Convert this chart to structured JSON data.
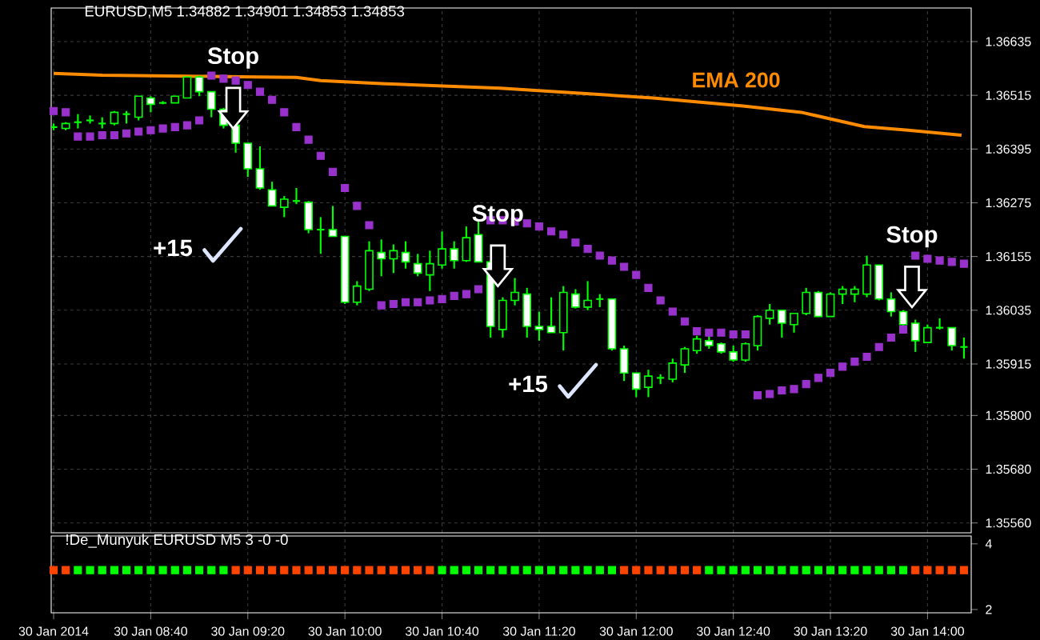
{
  "chart_data": [
    {
      "type": "candlestick",
      "title": "EURUSD,M5 1.34882 1.34901 1.34853 1.34853",
      "color": "#00ff00",
      "x": [
        "2014-01-30T08:00",
        "2014-01-30T08:05",
        "2014-01-30T08:10",
        "2014-01-30T08:15",
        "2014-01-30T08:20",
        "2014-01-30T08:25",
        "2014-01-30T08:30",
        "2014-01-30T08:35",
        "2014-01-30T08:40",
        "2014-01-30T08:45",
        "2014-01-30T08:50",
        "2014-01-30T08:55",
        "2014-01-30T09:00",
        "2014-01-30T09:05",
        "2014-01-30T09:10",
        "2014-01-30T09:15",
        "2014-01-30T09:20",
        "2014-01-30T09:25",
        "2014-01-30T09:30",
        "2014-01-30T09:35",
        "2014-01-30T09:40",
        "2014-01-30T09:45",
        "2014-01-30T09:50",
        "2014-01-30T09:55",
        "2014-01-30T10:00",
        "2014-01-30T10:05",
        "2014-01-30T10:10",
        "2014-01-30T10:15",
        "2014-01-30T10:20",
        "2014-01-30T10:25",
        "2014-01-30T10:30",
        "2014-01-30T10:35",
        "2014-01-30T10:40",
        "2014-01-30T10:45",
        "2014-01-30T10:50",
        "2014-01-30T10:55",
        "2014-01-30T11:00",
        "2014-01-30T11:05",
        "2014-01-30T11:10",
        "2014-01-30T11:15",
        "2014-01-30T11:20",
        "2014-01-30T11:25",
        "2014-01-30T11:30",
        "2014-01-30T11:35",
        "2014-01-30T11:40",
        "2014-01-30T11:45",
        "2014-01-30T11:50",
        "2014-01-30T11:55",
        "2014-01-30T12:00",
        "2014-01-30T12:05",
        "2014-01-30T12:10",
        "2014-01-30T12:15",
        "2014-01-30T12:20",
        "2014-01-30T12:25",
        "2014-01-30T12:30",
        "2014-01-30T12:35",
        "2014-01-30T12:40",
        "2014-01-30T12:45",
        "2014-01-30T12:50",
        "2014-01-30T12:55",
        "2014-01-30T13:00",
        "2014-01-30T13:05",
        "2014-01-30T13:10",
        "2014-01-30T13:15",
        "2014-01-30T13:20",
        "2014-01-30T13:25",
        "2014-01-30T13:30",
        "2014-01-30T13:35",
        "2014-01-30T13:40",
        "2014-01-30T13:45",
        "2014-01-30T13:50",
        "2014-01-30T13:55",
        "2014-01-30T14:00",
        "2014-01-30T14:05",
        "2014-01-30T14:10",
        "2014-01-30T14:15"
      ],
      "ohlc": [
        [
          1.36444,
          1.36452,
          1.36437,
          1.36444
        ],
        [
          1.36441,
          1.36455,
          1.36437,
          1.36452
        ],
        [
          1.36455,
          1.36473,
          1.36441,
          1.36455
        ],
        [
          1.36459,
          1.3647,
          1.36452,
          1.36459
        ],
        [
          1.36452,
          1.36466,
          1.36441,
          1.36452
        ],
        [
          1.36452,
          1.3648,
          1.36448,
          1.36477
        ],
        [
          1.36473,
          1.3648,
          1.36452,
          1.36473
        ],
        [
          1.36466,
          1.36513,
          1.36459,
          1.36513
        ],
        [
          1.36509,
          1.36513,
          1.36477,
          1.36495
        ],
        [
          1.36498,
          1.36502,
          1.36495,
          1.36498
        ],
        [
          1.36498,
          1.36513,
          1.36498,
          1.36513
        ],
        [
          1.36509,
          1.36556,
          1.36509,
          1.36556
        ],
        [
          1.36556,
          1.36559,
          1.36513,
          1.36523
        ],
        [
          1.36523,
          1.36523,
          1.36466,
          1.36484
        ],
        [
          1.36484,
          1.36487,
          1.36441,
          1.36448
        ],
        [
          1.36448,
          1.36448,
          1.36387,
          1.36408
        ],
        [
          1.36408,
          1.36408,
          1.36333,
          1.36351
        ],
        [
          1.36351,
          1.36401,
          1.36304,
          1.36308
        ],
        [
          1.36304,
          1.36322,
          1.36268,
          1.36268
        ],
        [
          1.36265,
          1.3629,
          1.36243,
          1.36283
        ],
        [
          1.36279,
          1.36308,
          1.36272,
          1.36279
        ],
        [
          1.36276,
          1.36279,
          1.36207,
          1.36215
        ],
        [
          1.36215,
          1.36243,
          1.36161,
          1.36215
        ],
        [
          1.36215,
          1.36268,
          1.362,
          1.362
        ],
        [
          1.362,
          1.362,
          1.36049,
          1.36053
        ],
        [
          1.36053,
          1.361,
          1.36046,
          1.36089
        ],
        [
          1.36082,
          1.36189,
          1.36078,
          1.36168
        ],
        [
          1.36164,
          1.36193,
          1.36111,
          1.3615
        ],
        [
          1.3615,
          1.36182,
          1.36118,
          1.36168
        ],
        [
          1.36164,
          1.36189,
          1.36128,
          1.36143
        ],
        [
          1.36139,
          1.36161,
          1.36111,
          1.36118
        ],
        [
          1.36114,
          1.36168,
          1.36078,
          1.36139
        ],
        [
          1.36136,
          1.36211,
          1.36128,
          1.36172
        ],
        [
          1.36172,
          1.36189,
          1.36128,
          1.36146
        ],
        [
          1.36146,
          1.36222,
          1.36143,
          1.36197
        ],
        [
          1.36204,
          1.36236,
          1.36143,
          1.36143
        ],
        [
          1.36143,
          1.36146,
          1.35974,
          1.35999
        ],
        [
          1.35992,
          1.36064,
          1.35974,
          1.36057
        ],
        [
          1.36057,
          1.36107,
          1.36046,
          1.36075
        ],
        [
          1.36071,
          1.36085,
          1.35974,
          1.35999
        ],
        [
          1.35999,
          1.36032,
          1.35967,
          1.35992
        ],
        [
          1.35999,
          1.36064,
          1.35985,
          1.35985
        ],
        [
          1.35985,
          1.36089,
          1.35945,
          1.36075
        ],
        [
          1.36071,
          1.36082,
          1.36039,
          1.36042
        ],
        [
          1.36042,
          1.361,
          1.36035,
          1.36057
        ],
        [
          1.3606,
          1.36071,
          1.36042,
          1.3606
        ],
        [
          1.3606,
          1.3606,
          1.35945,
          1.35949
        ],
        [
          1.35949,
          1.35956,
          1.35877,
          1.35895
        ],
        [
          1.35895,
          1.35895,
          1.35841,
          1.35859
        ],
        [
          1.35863,
          1.35902,
          1.35841,
          1.35888
        ],
        [
          1.35884,
          1.35892,
          1.3587,
          1.35884
        ],
        [
          1.35881,
          1.35927,
          1.35874,
          1.35917
        ],
        [
          1.35913,
          1.35953,
          1.35895,
          1.35949
        ],
        [
          1.35945,
          1.35978,
          1.35938,
          1.35971
        ],
        [
          1.35967,
          1.35978,
          1.35949,
          1.35956
        ],
        [
          1.3596,
          1.35963,
          1.35938,
          1.35942
        ],
        [
          1.35942,
          1.35956,
          1.3592,
          1.35924
        ],
        [
          1.35924,
          1.35963,
          1.3592,
          1.3596
        ],
        [
          1.35956,
          1.36024,
          1.35945,
          1.36021
        ],
        [
          1.36017,
          1.36049,
          1.36003,
          1.36035
        ],
        [
          1.36035,
          1.36035,
          1.35974,
          1.36006
        ],
        [
          1.36003,
          1.36028,
          1.35985,
          1.36028
        ],
        [
          1.36028,
          1.36085,
          1.36024,
          1.36075
        ],
        [
          1.36075,
          1.36078,
          1.36021,
          1.36021
        ],
        [
          1.36021,
          1.36075,
          1.36021,
          1.36071
        ],
        [
          1.36071,
          1.36089,
          1.36049,
          1.36082
        ],
        [
          1.36071,
          1.36089,
          1.36053,
          1.36082
        ],
        [
          1.36071,
          1.36157,
          1.36064,
          1.36136
        ],
        [
          1.36136,
          1.36136,
          1.36057,
          1.3606
        ],
        [
          1.3606,
          1.36075,
          1.36021,
          1.36032
        ],
        [
          1.36032,
          1.36035,
          1.35999,
          1.36003
        ],
        [
          1.36006,
          1.36014,
          1.35942,
          1.35967
        ],
        [
          1.35963,
          1.36003,
          1.35963,
          1.35996
        ],
        [
          1.35996,
          1.36017,
          1.35992,
          1.35996
        ],
        [
          1.35996,
          1.35996,
          1.35945,
          1.35956
        ],
        [
          1.35953,
          1.35974,
          1.35927,
          1.35953
        ]
      ],
      "series": [
        {
          "type": "line",
          "color": "#ff8c00",
          "x": [
            "2014-01-30T08:00",
            "2014-01-30T08:20",
            "2014-01-30T09:10",
            "2014-01-30T09:40",
            "2014-01-30T09:50",
            "2014-01-30T10:15",
            "2014-01-30T11:04",
            "2014-01-30T12:07",
            "2014-01-30T12:44",
            "2014-01-30T13:08",
            "2014-01-30T13:34",
            "2014-01-30T13:52",
            "2014-01-30T14:14"
          ],
          "values": [
            1.36564,
            1.3656,
            1.36557,
            1.36555,
            1.36548,
            1.36541,
            1.36531,
            1.36509,
            1.36491,
            1.36477,
            1.36445,
            1.36437,
            1.36426
          ]
        },
        {
          "type": "scatter",
          "color": "#9932cc",
          "marker": "square",
          "values": [
            1.3648,
            1.36477,
            1.36423,
            1.36423,
            1.36426,
            1.36426,
            1.3643,
            1.36434,
            1.36437,
            1.36441,
            1.36444,
            1.36448,
            1.36459,
            1.36559,
            1.36552,
            1.36548,
            1.36538,
            1.36523,
            1.36505,
            1.36477,
            1.36444,
            1.36416,
            1.3638,
            1.36344,
            1.36308,
            1.36268,
            1.36225,
            1.36046,
            1.36049,
            1.36053,
            1.36053,
            1.36057,
            1.3606,
            1.36067,
            1.36071,
            1.36082,
            1.36236,
            1.36236,
            1.36233,
            1.36229,
            1.36222,
            1.36211,
            1.36204,
            1.36186,
            1.36172,
            1.36157,
            1.36146,
            1.36132,
            1.36114,
            1.36085,
            1.36057,
            1.36032,
            1.3601,
            1.35988,
            1.35985,
            1.35985,
            1.35981,
            1.35981,
            1.35845,
            1.35848,
            1.35856,
            1.35859,
            1.3587,
            1.35884,
            1.35895,
            1.35909,
            1.3592,
            1.35931,
            1.35953,
            1.35974,
            1.35992,
            1.36157,
            1.3615,
            1.36146,
            1.36143,
            1.36139
          ]
        }
      ],
      "xlim": [
        "2014-01-30T07:59",
        "2014-01-30T14:18"
      ],
      "ylim": [
        1.35538,
        1.3671
      ],
      "xticks": [
        {
          "value": "2014-01-30T08:00",
          "label": null
        },
        {
          "value": "2014-01-30T08:40",
          "label": null
        },
        {
          "value": "2014-01-30T09:20",
          "label": null
        },
        {
          "value": "2014-01-30T10:00",
          "label": null
        },
        {
          "value": "2014-01-30T10:40",
          "label": null
        },
        {
          "value": "2014-01-30T11:20",
          "label": null
        },
        {
          "value": "2014-01-30T12:00",
          "label": null
        },
        {
          "value": "2014-01-30T12:40",
          "label": null
        },
        {
          "value": "2014-01-30T13:20",
          "label": null
        },
        {
          "value": "2014-01-30T14:00",
          "label": null
        }
      ],
      "yticks": [
        {
          "value": 1.3556,
          "label": "1.35560"
        },
        {
          "value": 1.3568,
          "label": "1.35680"
        },
        {
          "value": 1.358,
          "label": "1.35800"
        },
        1.35915,
        1.36035,
        1.36155,
        1.36275,
        1.36395,
        1.36515,
        1.36635
      ],
      "tick_labels": "y",
      "grid": true,
      "annotations": [
        {
          "text": "Stop",
          "x": "2014-01-30T09:14",
          "y": 1.36441
        },
        {
          "text": "Stop",
          "x": "2014-01-30T11:03",
          "y": 1.36089
        },
        "Stop",
        "+15",
        "+15",
        "EMA 200"
      ]
    },
    {
      "type": "scatter",
      "title": "!De_Munyuk EURUSD M5 3 -0 -0",
      "x": [
        "2014-01-30T08:00",
        "2014-01-30T08:05",
        "2014-01-30T08:10",
        "2014-01-30T08:15",
        "2014-01-30T08:20",
        "2014-01-30T08:25",
        "2014-01-30T08:30",
        "2014-01-30T08:35",
        "2014-01-30T08:40",
        "2014-01-30T08:45",
        "2014-01-30T08:50",
        "2014-01-30T08:55",
        "2014-01-30T09:00",
        "2014-01-30T09:05",
        "2014-01-30T09:10",
        "2014-01-30T09:15",
        "2014-01-30T09:20",
        "2014-01-30T09:25",
        "2014-01-30T09:30",
        "2014-01-30T09:35",
        "2014-01-30T09:40",
        "2014-01-30T09:45",
        "2014-01-30T09:50",
        "2014-01-30T09:55",
        "2014-01-30T10:00",
        "2014-01-30T10:05",
        "2014-01-30T10:10",
        "2014-01-30T10:15",
        "2014-01-30T10:20",
        "2014-01-30T10:25",
        "2014-01-30T10:30",
        "2014-01-30T10:35",
        "2014-01-30T10:40",
        "2014-01-30T10:45",
        "2014-01-30T10:50",
        "2014-01-30T10:55",
        "2014-01-30T11:00",
        "2014-01-30T11:05",
        "2014-01-30T11:10",
        "2014-01-30T11:15",
        "2014-01-30T11:20",
        "2014-01-30T11:25",
        "2014-01-30T11:30",
        "2014-01-30T11:35",
        "2014-01-30T11:40",
        "2014-01-30T11:45",
        "2014-01-30T11:50",
        "2014-01-30T11:55",
        "2014-01-30T12:00",
        "2014-01-30T12:05",
        "2014-01-30T12:10",
        "2014-01-30T12:15",
        "2014-01-30T12:20",
        "2014-01-30T12:25",
        "2014-01-30T12:30",
        "2014-01-30T12:35",
        "2014-01-30T12:40",
        "2014-01-30T12:45",
        "2014-01-30T12:50",
        "2014-01-30T12:55",
        "2014-01-30T13:00",
        "2014-01-30T13:05",
        "2014-01-30T13:10",
        "2014-01-30T13:15",
        "2014-01-30T13:20",
        "2014-01-30T13:25",
        "2014-01-30T13:30",
        "2014-01-30T13:35",
        "2014-01-30T13:40",
        "2014-01-30T13:45",
        "2014-01-30T13:50",
        "2014-01-30T13:55",
        "2014-01-30T14:00",
        "2014-01-30T14:05",
        "2014-01-30T14:10",
        "2014-01-30T14:15"
      ],
      "series": [
        {
          "marker": "square",
          "values": [
            3.2,
            3.2,
            3.2,
            3.2,
            3.2,
            3.2,
            3.2,
            3.2,
            3.2,
            3.2,
            3.2,
            3.2,
            3.2,
            3.2,
            3.2,
            3.2,
            3.2,
            3.2,
            3.2,
            3.2,
            3.2,
            3.2,
            3.2,
            3.2,
            3.2,
            3.2,
            3.2,
            3.2,
            3.2,
            3.2,
            3.2,
            3.2,
            3.2,
            3.2,
            3.2,
            3.2,
            3.2,
            3.2,
            3.2,
            3.2,
            3.2,
            3.2,
            3.2,
            3.2,
            3.2,
            3.2,
            3.2,
            3.2,
            3.2,
            3.2,
            3.2,
            3.2,
            3.2,
            3.2,
            3.2,
            3.2,
            3.2,
            3.2,
            3.2,
            3.2,
            3.2,
            3.2,
            3.2,
            3.2,
            3.2,
            3.2,
            3.2,
            3.2,
            3.2,
            3.2,
            3.2,
            3.2,
            3.2,
            3.2,
            3.2,
            3.2
          ],
          "colors": [
            "#ff4500",
            "#ff4500",
            "#00ff00",
            "#00ff00",
            "#00ff00",
            "#00ff00",
            "#00ff00",
            "#00ff00",
            "#00ff00",
            "#00ff00",
            "#00ff00",
            "#00ff00",
            "#00ff00",
            "#00ff00",
            "#00ff00",
            "#ff4500",
            "#ff4500",
            "#ff4500",
            "#ff4500",
            "#ff4500",
            "#ff4500",
            "#ff4500",
            "#ff4500",
            "#ff4500",
            "#ff4500",
            "#ff4500",
            "#ff4500",
            "#ff4500",
            "#ff4500",
            "#ff4500",
            "#ff4500",
            "#ff4500",
            "#00ff00",
            "#00ff00",
            "#00ff00",
            "#00ff00",
            "#00ff00",
            "#00ff00",
            "#00ff00",
            "#00ff00",
            "#00ff00",
            "#00ff00",
            "#00ff00",
            "#00ff00",
            "#00ff00",
            "#00ff00",
            "#00ff00",
            "#ff4500",
            "#ff4500",
            "#ff4500",
            "#ff4500",
            "#ff4500",
            "#ff4500",
            "#ff4500",
            "#00ff00",
            "#00ff00",
            "#00ff00",
            "#00ff00",
            "#00ff00",
            "#00ff00",
            "#00ff00",
            "#00ff00",
            "#00ff00",
            "#00ff00",
            "#00ff00",
            "#00ff00",
            "#00ff00",
            "#00ff00",
            "#00ff00",
            "#00ff00",
            "#00ff00",
            "#ff4500",
            "#ff4500",
            "#ff4500",
            "#ff4500",
            "#ff4500"
          ]
        }
      ],
      "xlim": [
        "2014-01-30T07:59",
        "2014-01-30T14:18"
      ],
      "ylim": [
        1.9,
        4.24
      ],
      "yticks": [
        2,
        4
      ],
      "xticks": [
        {
          "value": "2014-01-30T08:00",
          "label": "30 Jan 2014"
        },
        {
          "value": "2014-01-30T08:40",
          "label": "30 Jan 08:40"
        },
        {
          "value": "2014-01-30T09:20",
          "label": "30 Jan 09:20"
        },
        {
          "value": "2014-01-30T10:00",
          "label": "30 Jan 10:00"
        },
        {
          "value": "2014-01-30T10:40",
          "label": "30 Jan 10:40"
        },
        {
          "value": "2014-01-30T11:20",
          "label": "30 Jan 11:20"
        },
        {
          "value": "2014-01-30T12:00",
          "label": "30 Jan 12:00"
        },
        {
          "value": "2014-01-30T12:40",
          "label": "30 Jan 12:40"
        },
        {
          "value": "2014-01-30T13:20",
          "label": "30 Jan 13:20"
        },
        {
          "value": "2014-01-30T14:00",
          "label": "30 Jan 14:00"
        }
      ],
      "grid": "x"
    }
  ]
}
